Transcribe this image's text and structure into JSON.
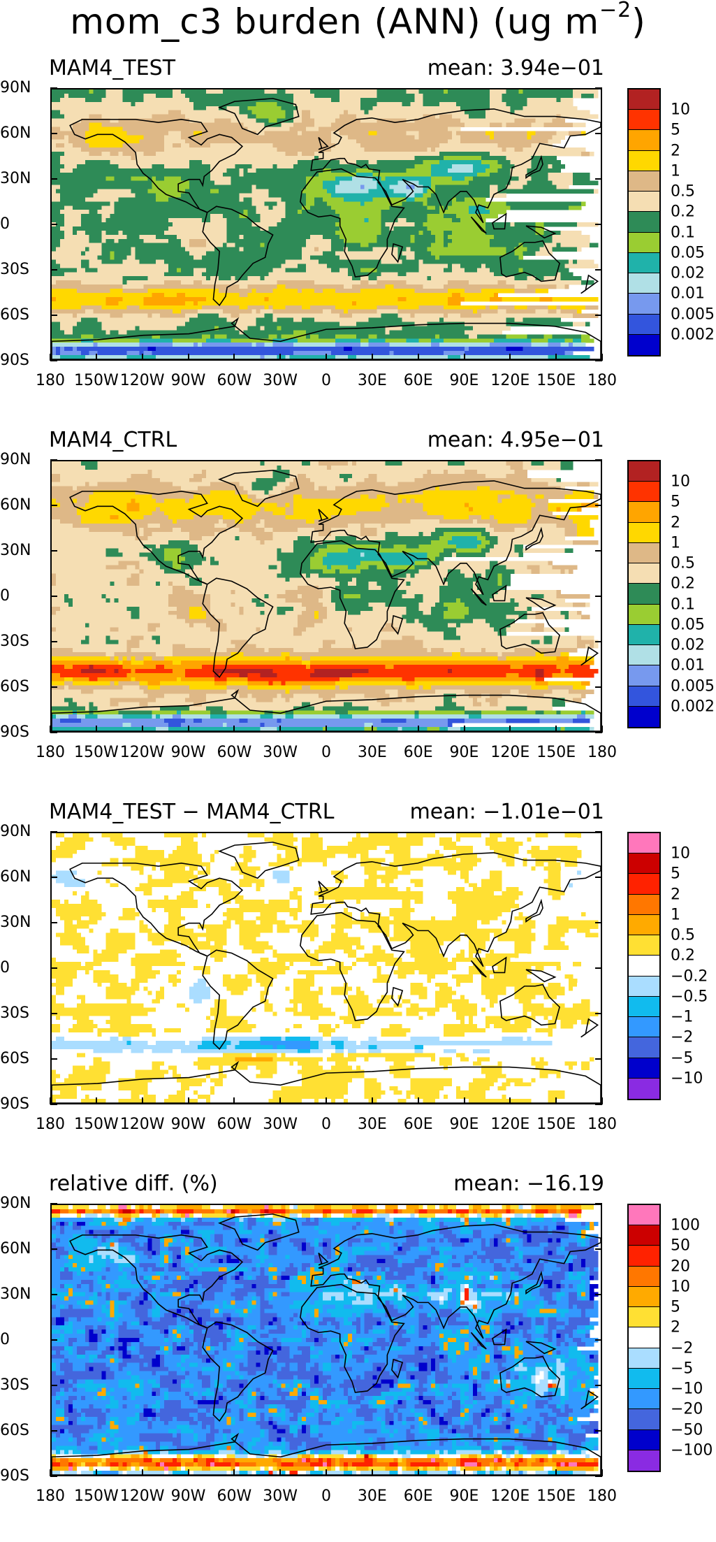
{
  "title": {
    "main": "mom_c3 burden (ANN) (ug m",
    "exp": "−2",
    "close": ")"
  },
  "axes": {
    "yticks": [
      "90N",
      "60N",
      "30N",
      "0",
      "30S",
      "60S",
      "90S"
    ],
    "xticks": [
      "180",
      "150W",
      "120W",
      "90W",
      "60W",
      "30W",
      "0",
      "30E",
      "60E",
      "90E",
      "120E",
      "150E",
      "180"
    ]
  },
  "chart_data": [
    {
      "type": "heatmap",
      "title": "MAM4_TEST",
      "mean_label": "mean: 3.94e−01",
      "mean": 0.394,
      "x_range": [
        -180,
        180
      ],
      "y_range": [
        -90,
        90
      ],
      "units": "ug m-2",
      "colorbar_labels": [
        "10",
        "5",
        "2",
        "1",
        "0.5",
        "0.2",
        "0.1",
        "0.05",
        "0.02",
        "0.01",
        "0.005",
        "0.002"
      ],
      "colorbar_colors": [
        "#b22222",
        "#ff3300",
        "#ffa500",
        "#ffd800",
        "#deb887",
        "#f5deb3",
        "#2e8b57",
        "#9acd32",
        "#20b2aa",
        "#b0e0e6",
        "#7799ee",
        "#3355dd",
        "#0000cd"
      ]
    },
    {
      "type": "heatmap",
      "title": "MAM4_CTRL",
      "mean_label": "mean: 4.95e−01",
      "mean": 0.495,
      "x_range": [
        -180,
        180
      ],
      "y_range": [
        -90,
        90
      ],
      "units": "ug m-2",
      "colorbar_labels": [
        "10",
        "5",
        "2",
        "1",
        "0.5",
        "0.2",
        "0.1",
        "0.05",
        "0.02",
        "0.01",
        "0.005",
        "0.002"
      ],
      "colorbar_colors": [
        "#b22222",
        "#ff3300",
        "#ffa500",
        "#ffd800",
        "#deb887",
        "#f5deb3",
        "#2e8b57",
        "#9acd32",
        "#20b2aa",
        "#b0e0e6",
        "#7799ee",
        "#3355dd",
        "#0000cd"
      ]
    },
    {
      "type": "heatmap",
      "title": "MAM4_TEST − MAM4_CTRL",
      "mean_label": "mean: −1.01e−01",
      "mean": -0.101,
      "x_range": [
        -180,
        180
      ],
      "y_range": [
        -90,
        90
      ],
      "units": "ug m-2",
      "colorbar_labels": [
        "10",
        "5",
        "2",
        "1",
        "0.5",
        "0.2",
        "−0.2",
        "−0.5",
        "−1",
        "−2",
        "−5",
        "−10"
      ],
      "colorbar_colors": [
        "#ff77bb",
        "#cc0000",
        "#ff2200",
        "#ff7700",
        "#ffaa00",
        "#ffe033",
        "#ffffff",
        "#aaddff",
        "#11bbee",
        "#3399ff",
        "#4466dd",
        "#0000cc",
        "#8a2be2"
      ]
    },
    {
      "type": "heatmap",
      "title": "relative diff. (%)",
      "mean_label": "mean: −16.19",
      "mean": -16.19,
      "x_range": [
        -180,
        180
      ],
      "y_range": [
        -90,
        90
      ],
      "units": "%",
      "colorbar_labels": [
        "100",
        "50",
        "20",
        "10",
        "5",
        "2",
        "−2",
        "−5",
        "−10",
        "−20",
        "−50",
        "−100"
      ],
      "colorbar_colors": [
        "#ff77bb",
        "#cc0000",
        "#ff2200",
        "#ff7700",
        "#ffaa00",
        "#ffe033",
        "#ffffff",
        "#aaddff",
        "#11bbee",
        "#3399ff",
        "#4466dd",
        "#0000cc",
        "#8a2be2"
      ]
    }
  ]
}
